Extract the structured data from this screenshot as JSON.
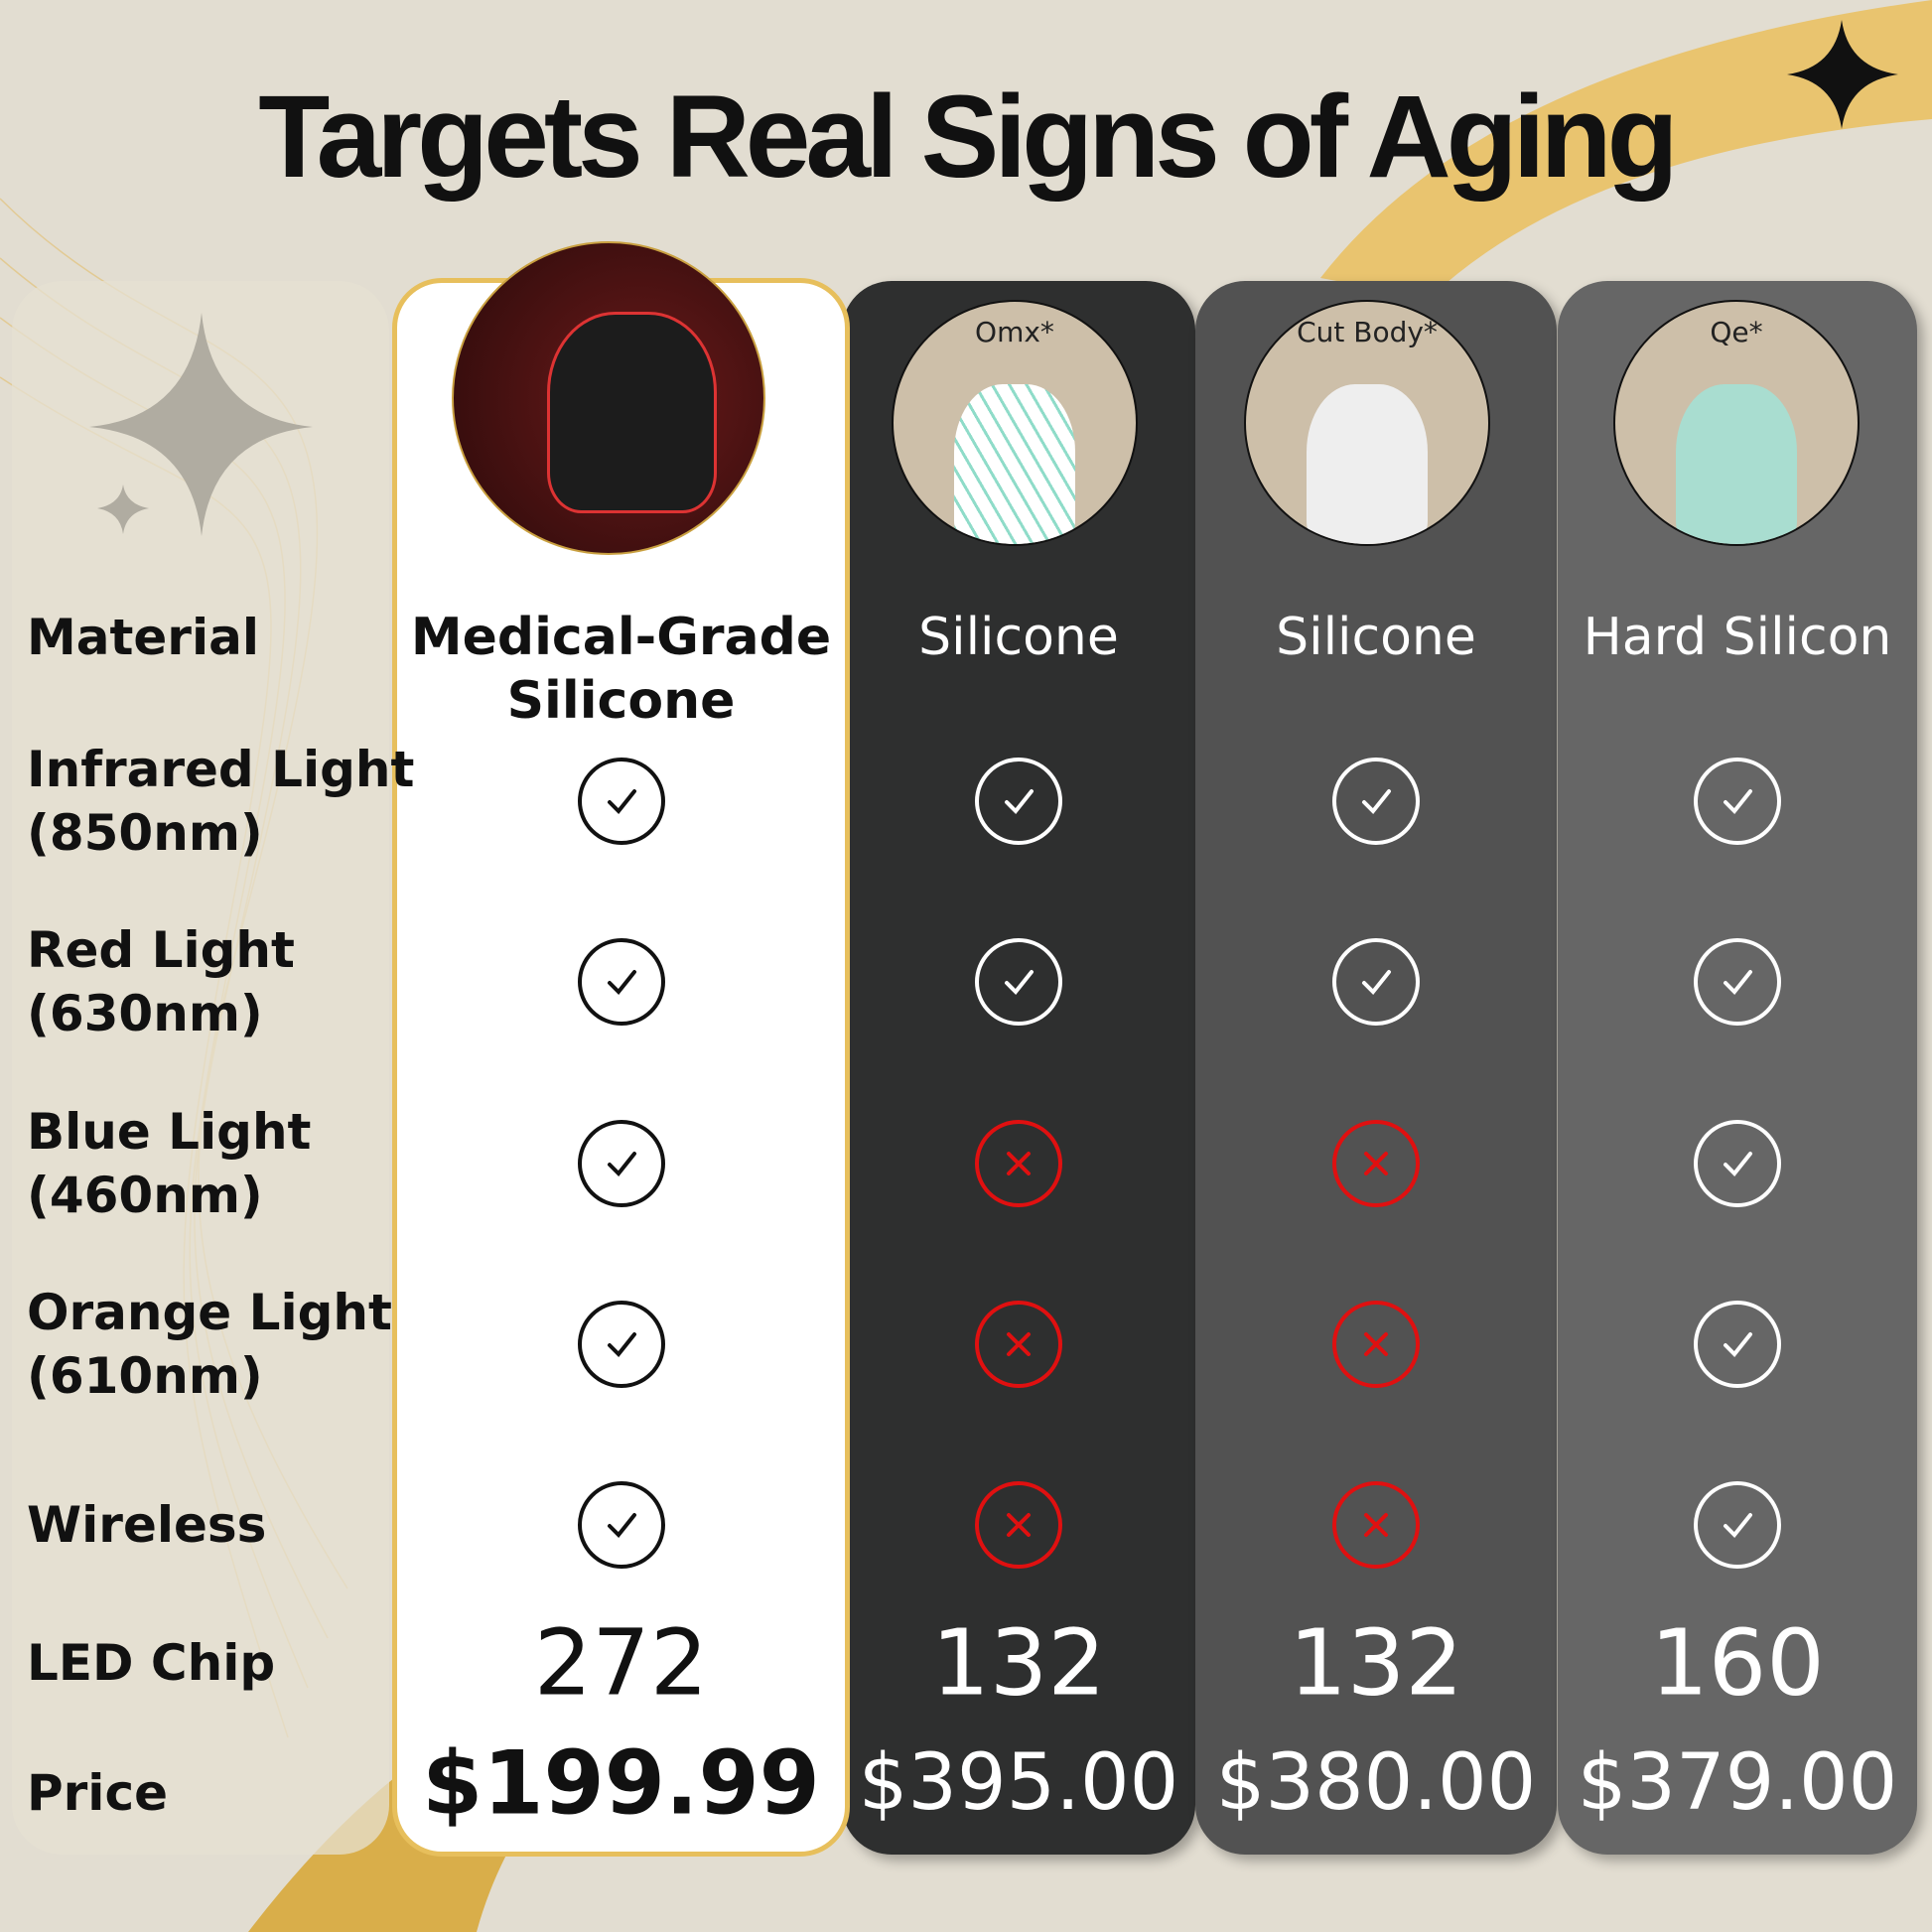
{
  "title": "Targets Real Signs of Aging",
  "rows": [
    "Material",
    "Infrared Light\n(850nm)",
    "Red Light\n(630nm)",
    "Blue Light\n(460nm)",
    "Orange Light\n(610nm)",
    "Wireless",
    "LED Chip",
    "Price"
  ],
  "products": [
    {
      "brand": "",
      "material": "Medical-Grade\nSilicone",
      "features": [
        true,
        true,
        true,
        true,
        true
      ],
      "led_chip": "272",
      "price": "$199.99"
    },
    {
      "brand": "Omx*",
      "material": "Silicone",
      "features": [
        true,
        true,
        false,
        false,
        false
      ],
      "led_chip": "132",
      "price": "$395.00"
    },
    {
      "brand": "Cut Body*",
      "material": "Silicone",
      "features": [
        true,
        true,
        false,
        false,
        false
      ],
      "led_chip": "132",
      "price": "$380.00"
    },
    {
      "brand": "Qe*",
      "material": "Hard Silicon",
      "features": [
        true,
        true,
        true,
        true,
        true
      ],
      "led_chip": "160",
      "price": "$379.00"
    }
  ],
  "colors": {
    "gold": "#e7bf5c",
    "check_dark": "#111111",
    "check_light": "#ffffff",
    "cross": "#e01010"
  }
}
